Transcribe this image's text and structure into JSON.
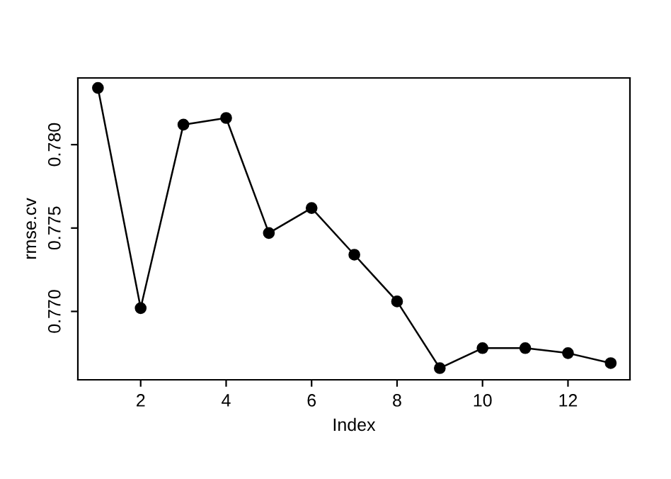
{
  "chart_data": {
    "type": "line",
    "xlabel": "Index",
    "ylabel": "rmse.cv",
    "x": [
      1,
      2,
      3,
      4,
      5,
      6,
      7,
      8,
      9,
      10,
      11,
      12,
      13
    ],
    "series": [
      {
        "color": "#000000",
        "values": [
          0.7834,
          0.7702,
          0.7812,
          0.7816,
          0.7747,
          0.7762,
          0.7734,
          0.7706,
          0.7666,
          0.7678,
          0.7678,
          0.7675,
          0.7669
        ]
      }
    ],
    "xlim": [
      0.53,
      13.45
    ],
    "ylim": [
      0.7659,
      0.784
    ],
    "xticks": [
      2,
      4,
      6,
      8,
      10,
      12
    ],
    "yticks": [
      {
        "value": 0.77,
        "label": "0.770"
      },
      0.775,
      {
        "value": 0.78,
        "label": "0.780"
      }
    ],
    "marker": "circle",
    "line_style": "solid",
    "grid": false,
    "legend": false
  }
}
